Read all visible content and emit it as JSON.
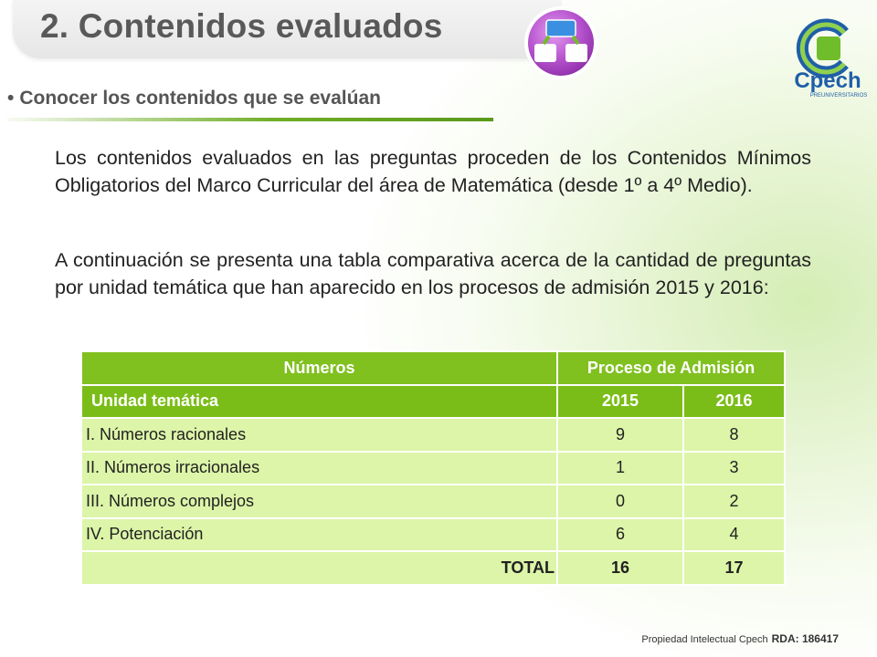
{
  "header": {
    "title": "2. Contenidos evaluados",
    "logo_text": "Cpech",
    "logo_subtext": "PREUNIVERSITARIOS"
  },
  "subtitle": {
    "bullet": "•",
    "text": "Conocer los contenidos que se evalúan"
  },
  "body": {
    "paragraph1": "Los contenidos evaluados en las preguntas proceden de los Contenidos Mínimos Obligatorios del Marco Curricular del área de Matemática (desde 1º a 4º Medio).",
    "paragraph2": "A continuación se presenta una tabla comparativa acerca de la cantidad de preguntas por unidad temática que han aparecido en los procesos de admisión 2015 y 2016:"
  },
  "table": {
    "header1": [
      "Números",
      "Proceso de Admisión"
    ],
    "header2": [
      "Unidad temática",
      "2015",
      "2016"
    ],
    "rows": [
      {
        "label": "I.   Números racionales",
        "y2015": "9",
        "y2016": "8"
      },
      {
        "label": "II.  Números irracionales",
        "y2015": "1",
        "y2016": "3"
      },
      {
        "label": "III. Números complejos",
        "y2015": "0",
        "y2016": "2"
      },
      {
        "label": "IV. Potenciación",
        "y2015": "6",
        "y2016": "4"
      }
    ],
    "total": {
      "label": "TOTAL",
      "y2015": "16",
      "y2016": "17"
    }
  },
  "footer": {
    "text": "Propiedad Intelectual Cpech",
    "rda": "RDA: 186417"
  },
  "colors": {
    "accent_green": "#80c01f",
    "row_green": "#dcf5a8",
    "title_gray": "#595959",
    "logo_blue": "#1f5fa8",
    "icon_purple": "#b04fc7"
  }
}
